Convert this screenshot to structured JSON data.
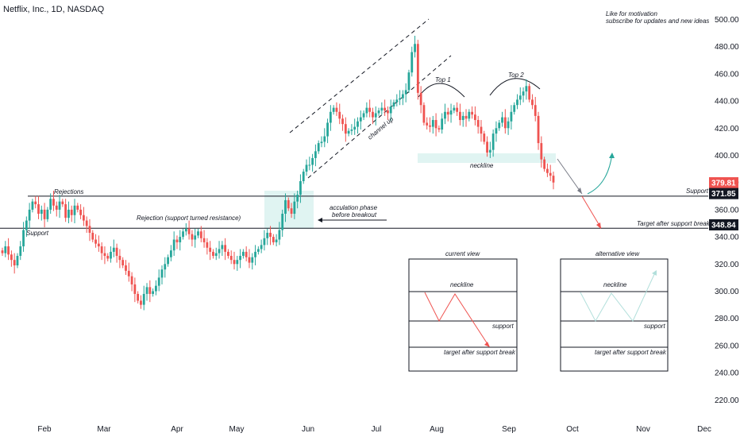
{
  "header": {
    "title": "Netflix, Inc., 1D, NASDAQ"
  },
  "note": {
    "line1": "Like for motivation",
    "line2": "subscribe for updates and new ideas"
  },
  "chart_data": {
    "type": "candlestick",
    "ylim": [
      210,
      510
    ],
    "y_ticks": [
      220,
      240,
      260,
      280,
      300,
      320,
      340,
      360,
      380,
      400,
      420,
      440,
      460,
      480,
      500
    ],
    "y_tick_labels": [
      "220.00",
      "240.00",
      "260.00",
      "280.00",
      "300.00",
      "320.00",
      "340.00",
      "360.00",
      "380.00",
      "400.00",
      "420.00",
      "440.00",
      "460.00",
      "480.00",
      "500.00"
    ],
    "x_labels": [
      "Feb",
      "Mar",
      "Apr",
      "May",
      "Jun",
      "Jul",
      "Aug",
      "Sep",
      "Oct",
      "Nov",
      "Dec"
    ],
    "price_tags": [
      {
        "label": "379.81",
        "value": 379.81,
        "color": "#ef5350"
      },
      {
        "label": "371.85",
        "value": 371.85,
        "color": "#131722"
      },
      {
        "label": "348.84",
        "value": 348.84,
        "color": "#131722"
      }
    ],
    "levels": [
      {
        "name": "Support",
        "value": 371.85
      },
      {
        "name": "Target after support break",
        "value": 348.84
      }
    ],
    "closes": [
      328,
      333,
      327,
      323,
      319,
      326,
      333,
      345,
      352,
      360,
      366,
      364,
      357,
      360,
      353,
      360,
      368,
      363,
      360,
      366,
      364,
      354,
      360,
      356,
      363,
      360,
      356,
      352,
      348,
      343,
      338,
      335,
      333,
      328,
      326,
      324,
      329,
      332,
      326,
      323,
      319,
      315,
      311,
      305,
      298,
      293,
      290,
      298,
      303,
      298,
      300,
      304,
      310,
      316,
      320,
      325,
      330,
      338,
      336,
      340,
      344,
      346,
      342,
      338,
      341,
      344,
      339,
      336,
      332,
      329,
      326,
      328,
      331,
      334,
      329,
      326,
      323,
      320,
      323,
      326,
      329,
      325,
      321,
      325,
      329,
      331,
      334,
      339,
      343,
      340,
      336,
      338,
      345,
      357,
      367,
      361,
      357,
      366,
      371,
      381,
      388,
      393,
      393,
      398,
      403,
      409,
      410,
      414,
      424,
      432,
      435,
      432,
      427,
      423,
      416,
      418,
      419,
      421,
      425,
      428,
      431,
      435,
      432,
      428,
      431,
      433,
      435,
      433,
      431,
      436,
      439,
      441,
      442,
      445,
      448,
      461,
      476,
      482,
      446,
      437,
      424,
      422,
      421,
      426,
      420,
      419,
      427,
      432,
      430,
      433,
      435,
      432,
      426,
      429,
      427,
      432,
      430,
      426,
      421,
      416,
      410,
      402,
      404,
      416,
      420,
      424,
      428,
      420,
      425,
      432,
      437,
      441,
      444,
      447,
      451,
      441,
      437,
      429,
      409,
      397,
      390,
      387,
      385,
      380
    ]
  },
  "annotations": {
    "rejections": "Rejections",
    "support_left": "Support",
    "rejection_resist": "Rejection (support turned resistance)",
    "accum_line1": "acculation phase",
    "accum_line2": "before breakout",
    "channel_up": "channel up",
    "top1": "Top 1",
    "top2": "Top 2",
    "neckline": "neckline",
    "support_right": "Support",
    "target_right": "Target after support break"
  },
  "inset_current": {
    "title": "current view",
    "neckline": "neckline",
    "support": "support",
    "target": "target after support break",
    "color": "#ef5350"
  },
  "inset_alternative": {
    "title": "alternative view",
    "neckline": "neckline",
    "support": "support",
    "target": "target after support break",
    "color": "#26a69a"
  },
  "colors": {
    "up": "#26a69a",
    "down": "#ef5350",
    "zone": "#e0f4f2"
  }
}
